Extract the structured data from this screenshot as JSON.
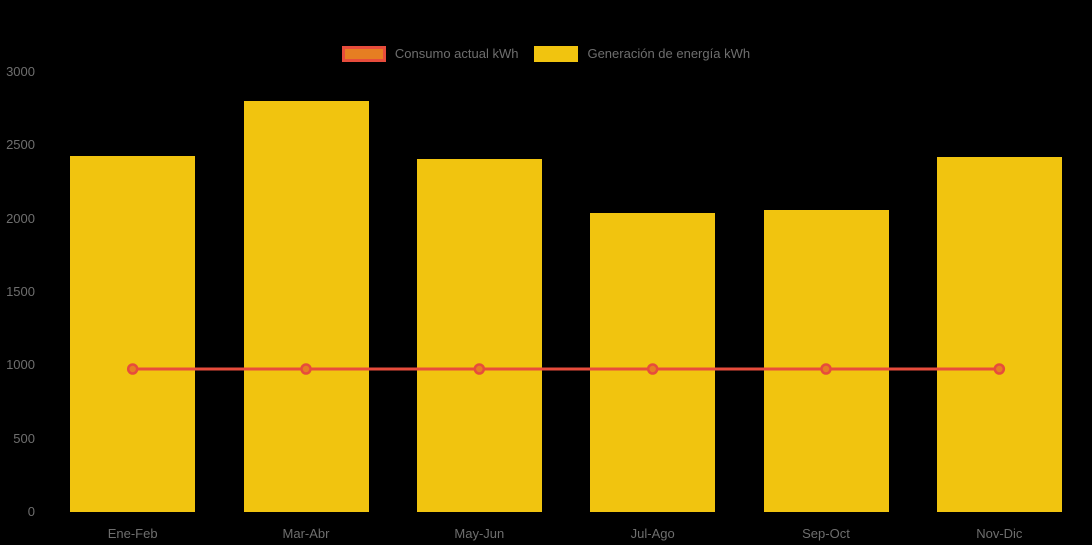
{
  "colors": {
    "background": "#000000",
    "bar_yellow": "#f1c40f",
    "line_red": "#e74c3c",
    "marker_orange": "#e67e22",
    "axis_text": "#6e6e6e"
  },
  "legend": {
    "items": [
      {
        "label": "Consumo actual kWh",
        "fill": "#e67e22",
        "border": "#e74c3c"
      },
      {
        "label": "Generación de energía kWh",
        "fill": "#f1c40f",
        "border": "#f1c40f"
      }
    ]
  },
  "chart_data": {
    "type": "bar",
    "categories": [
      "Ene-Feb",
      "Mar-Abr",
      "May-Jun",
      "Jul-Ago",
      "Sep-Oct",
      "Nov-Dic"
    ],
    "series": [
      {
        "name": "Consumo actual kWh",
        "type": "line",
        "color": "#e74c3c",
        "marker_fill": "#e67e22",
        "values": [
          975,
          975,
          975,
          975,
          975,
          975
        ]
      },
      {
        "name": "Generación de energía kWh",
        "type": "bar",
        "color": "#f1c40f",
        "values": [
          2430,
          2800,
          2410,
          2040,
          2060,
          2420
        ]
      }
    ],
    "title": "",
    "xlabel": "",
    "ylabel": "",
    "ylim": [
      0,
      3000
    ],
    "yticks": [
      0,
      500,
      1000,
      1500,
      2000,
      2500,
      3000
    ],
    "grid": false,
    "legend_position": "top"
  }
}
